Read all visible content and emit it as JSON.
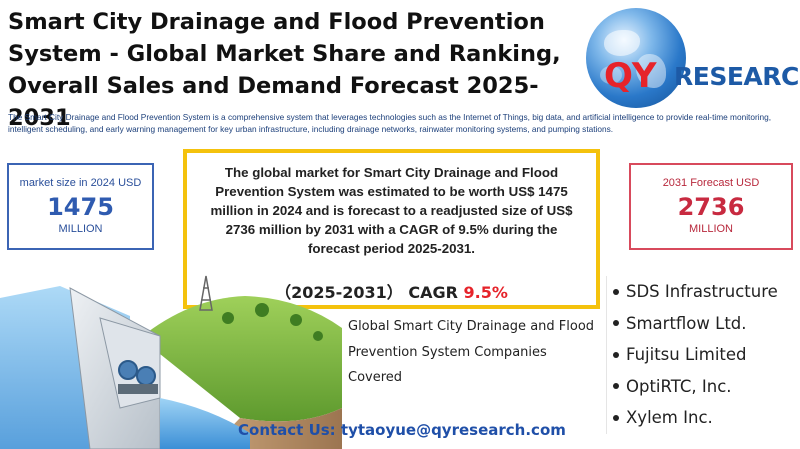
{
  "title": "Smart City Drainage and Flood Prevention System - Global Market Share and Ranking, Overall Sales and Demand Forecast 2025-2031",
  "logo": {
    "q": "QY",
    "rest": "RESEARCH"
  },
  "description": "The Smart City Drainage and Flood Prevention System is a comprehensive system that leverages technologies such as the Internet of Things, big data, and artificial intelligence to provide real-time monitoring, intelligent scheduling, and early warning management for key urban infrastructure, including drainage networks, rainwater monitoring systems, and pumping stations.",
  "market_2024": {
    "label": "market size in 2024 USD",
    "value": "1475",
    "unit": "MILLION"
  },
  "forecast_2031": {
    "label": "2031 Forecast  USD",
    "value": "2736",
    "unit": "MILLION"
  },
  "summary": "The global market for Smart City Drainage and Flood Prevention System was estimated to be worth US$ 1475 million in 2024 and is forecast to a readjusted size of US$ 2736 million by 2031 with a CAGR of 9.5% during the forecast period 2025-2031.",
  "cagr": {
    "period": "（2025-2031）",
    "label": "CAGR",
    "value": "9.5%"
  },
  "companies_label": "Global Smart City Drainage and Flood Prevention System Companies Covered",
  "companies": [
    "SDS Infrastructure",
    "Smartflow Ltd.",
    "Fujitsu Limited",
    "OptiRTC, Inc.",
    "Xylem Inc."
  ],
  "contact": "Contact Us: tytaoyue@qyresearch.com",
  "colors": {
    "title": "#111111",
    "blue_box": "#3b64b4",
    "red_box": "#d84a5c",
    "gold_border": "#f4c20d",
    "accent_red": "#e6232a",
    "contact_blue": "#1f4fa8"
  },
  "illustration": "dam-with-turbines-icon"
}
